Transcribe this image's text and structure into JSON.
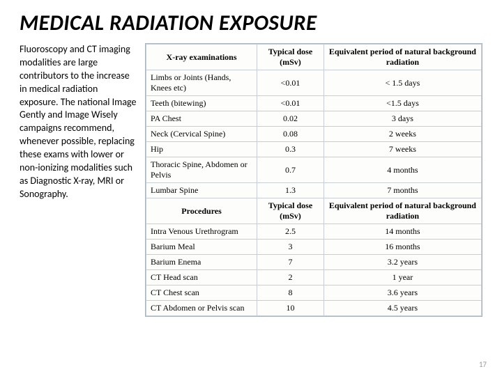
{
  "title": "MEDICAL RADIATION EXPOSURE",
  "body_text": "Fluoroscopy and CT imaging modalities are large contributors to the increase in medical radiation exposure. The national Image Gently and Image Wisely campaigns recommend, whenever possible, replacing these exams with lower or non-ionizing modalities such as Diagnostic X-ray, MRI or Sonography.",
  "page_number": "17",
  "table": {
    "headers1": {
      "col1": "X-ray examinations",
      "col2": "Typical dose (mSv)",
      "col3": "Equivalent period of natural background radiation"
    },
    "rows1": [
      {
        "c1": "Limbs or Joints (Hands, Knees etc)",
        "c2": "<0.01",
        "c3": "< 1.5 days"
      },
      {
        "c1": "Teeth (bitewing)",
        "c2": "<0.01",
        "c3": "<1.5 days"
      },
      {
        "c1": "PA Chest",
        "c2": "0.02",
        "c3": "3 days"
      },
      {
        "c1": "Neck (Cervical Spine)",
        "c2": "0.08",
        "c3": "2 weeks"
      },
      {
        "c1": "Hip",
        "c2": "0.3",
        "c3": "7 weeks"
      },
      {
        "c1": "Thoracic Spine, Abdomen or Pelvis",
        "c2": "0.7",
        "c3": "4 months"
      },
      {
        "c1": "Lumbar Spine",
        "c2": "1.3",
        "c3": "7 months"
      }
    ],
    "headers2": {
      "col1": "Procedures",
      "col2": "Typical dose (mSv)",
      "col3": "Equivalent period of natural background radiation"
    },
    "rows2": [
      {
        "c1": "Intra Venous Urethrogram",
        "c2": "2.5",
        "c3": "14 months"
      },
      {
        "c1": "Barium Meal",
        "c2": "3",
        "c3": "16 months"
      },
      {
        "c1": "Barium Enema",
        "c2": "7",
        "c3": "3.2 years"
      },
      {
        "c1": "CT Head scan",
        "c2": "2",
        "c3": "1 year"
      },
      {
        "c1": "CT Chest scan",
        "c2": "8",
        "c3": "3.6 years"
      },
      {
        "c1": "CT Abdomen or Pelvis scan",
        "c2": "10",
        "c3": "4.5 years"
      }
    ]
  }
}
